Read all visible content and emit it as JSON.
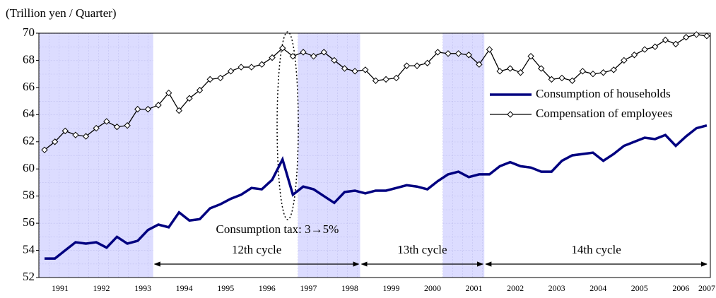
{
  "chart_data": {
    "type": "line",
    "ylabel": "(Trillion yen / Quarter)",
    "categories": [
      null,
      "1991",
      null,
      null,
      null,
      "1992",
      null,
      null,
      null,
      "1993",
      null,
      null,
      null,
      "1994",
      null,
      null,
      null,
      "1995",
      null,
      null,
      null,
      "1996",
      null,
      null,
      null,
      "1997",
      null,
      null,
      null,
      "1998",
      null,
      null,
      null,
      "1999",
      null,
      null,
      null,
      "2000",
      null,
      null,
      null,
      "2001",
      null,
      null,
      null,
      "2002",
      null,
      null,
      null,
      "2003",
      null,
      null,
      null,
      "2004",
      null,
      null,
      null,
      "2005",
      null,
      null,
      null,
      "2006",
      null,
      null,
      "2007"
    ],
    "series": [
      {
        "name": "Consumption of households",
        "color": "#000080",
        "values": [
          53.4,
          53.4,
          54.0,
          54.6,
          54.5,
          54.6,
          54.2,
          55.0,
          54.5,
          54.7,
          55.5,
          55.9,
          55.7,
          56.8,
          56.2,
          56.3,
          57.1,
          57.4,
          57.8,
          58.1,
          58.6,
          58.5,
          59.2,
          60.7,
          58.1,
          58.7,
          58.5,
          58.0,
          57.5,
          58.3,
          58.4,
          58.2,
          58.4,
          58.4,
          58.6,
          58.8,
          58.7,
          58.5,
          59.1,
          59.6,
          59.8,
          59.4,
          59.6,
          59.6,
          60.2,
          60.5,
          60.2,
          60.1,
          59.8,
          59.8,
          60.6,
          61.0,
          61.1,
          61.2,
          60.6,
          61.1,
          61.7,
          62.0,
          62.3,
          62.2,
          62.5,
          61.7,
          62.4,
          63.0,
          63.2
        ]
      },
      {
        "name": "Compensation of employees",
        "color": "#000000",
        "values": [
          61.4,
          62.0,
          62.8,
          62.5,
          62.4,
          63.0,
          63.5,
          63.1,
          63.2,
          64.4,
          64.4,
          64.7,
          65.6,
          64.3,
          65.2,
          65.8,
          66.6,
          66.7,
          67.2,
          67.5,
          67.5,
          67.7,
          68.2,
          68.9,
          68.3,
          68.6,
          68.3,
          68.6,
          68.0,
          67.4,
          67.2,
          67.3,
          66.5,
          66.6,
          66.7,
          67.6,
          67.6,
          67.8,
          68.6,
          68.5,
          68.5,
          68.4,
          67.7,
          68.8,
          67.2,
          67.4,
          67.1,
          68.3,
          67.4,
          66.6,
          66.7,
          66.5,
          67.2,
          67.0,
          67.1,
          67.3,
          68.0,
          68.4,
          68.8,
          69.0,
          69.5,
          69.2,
          69.7,
          69.9,
          69.8
        ]
      }
    ],
    "ylim": [
      52,
      70
    ],
    "yticks": [
      52,
      54,
      56,
      58,
      60,
      62,
      64,
      66,
      68,
      70
    ],
    "shaded": [
      [
        0,
        10
      ],
      [
        25,
        30
      ],
      [
        39,
        42
      ]
    ],
    "annotations": [
      "Consumption tax: 3→5%",
      "12th cycle",
      "13th cycle",
      "14th cycle"
    ],
    "legend": "upper right"
  }
}
